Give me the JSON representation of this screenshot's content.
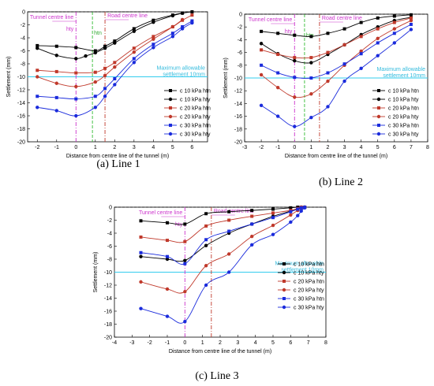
{
  "figure": {
    "captions": [
      "(a) Line 1",
      "(b) Line 2",
      "(c) Line 3"
    ],
    "xlabel": "Distance from centre line of the tunnel (m)",
    "ylabel": "Settlement (mm)",
    "annotations": {
      "tunnel": "Tunnel centre line",
      "road": "Road centre line",
      "hty": "hty",
      "htn": "htn",
      "max1": "Maximum allowable",
      "max2": "settlement  10mm"
    }
  },
  "colors": {
    "black": "#000000",
    "red": "#c0392b",
    "blue": "#1a2bdc",
    "magenta": "#cc33cc",
    "green": "#33bb33",
    "cyan": "#33ccee"
  },
  "chart_data": [
    {
      "type": "line",
      "id": "line1",
      "caption": "(a) Line 1",
      "xlabel": "Distance from centre line of the tunnel (m)",
      "ylabel": "Settlement (mm)",
      "xlim": [
        -2.5,
        6.8
      ],
      "ylim": [
        -20,
        0
      ],
      "xticks": [
        -2,
        -1,
        0,
        1,
        2,
        3,
        4,
        5,
        6
      ],
      "yticks": [
        0,
        -2,
        -4,
        -6,
        -8,
        -10,
        -12,
        -14,
        -16,
        -18,
        -20
      ],
      "tunnel_x": 0,
      "road_x": 1.5,
      "htn_x": 0.85,
      "limit_y": -10,
      "series": [
        {
          "name": "c 10 kPa htn",
          "color": "black",
          "marker": "square",
          "x": [
            -2,
            -1,
            0,
            1,
            1.5,
            2,
            3,
            4,
            5,
            5.5,
            6
          ],
          "y": [
            -5.2,
            -5.3,
            -5.5,
            -6.0,
            -5.3,
            -4.5,
            -2.6,
            -1.3,
            -0.5,
            -0.2,
            0
          ]
        },
        {
          "name": "c 10 kPa hty",
          "color": "black",
          "marker": "circle",
          "x": [
            -2,
            -1,
            0,
            0.5,
            1,
            1.5,
            2,
            3,
            4,
            5,
            5.5
          ],
          "y": [
            -5.6,
            -6.7,
            -7.2,
            -6.8,
            -6.3,
            -5.6,
            -4.8,
            -3.0,
            -1.6,
            -0.6,
            -0.2
          ]
        },
        {
          "name": "c 20 kPa htn",
          "color": "red",
          "marker": "square",
          "x": [
            -2,
            -1,
            0,
            1,
            1.5,
            2,
            3,
            4,
            5,
            5.5,
            6
          ],
          "y": [
            -9.0,
            -9.2,
            -9.4,
            -9.3,
            -8.7,
            -7.8,
            -5.6,
            -3.8,
            -2.3,
            -1.3,
            -0.5
          ]
        },
        {
          "name": "c 20 kPa hty",
          "color": "red",
          "marker": "circle",
          "x": [
            -2,
            -1,
            0,
            1,
            1.5,
            2,
            3,
            4,
            5,
            5.5
          ],
          "y": [
            -10.0,
            -11.0,
            -11.5,
            -10.8,
            -9.8,
            -8.5,
            -6.2,
            -4.2,
            -2.3,
            -1.2
          ]
        },
        {
          "name": "c 30 kPa htn",
          "color": "blue",
          "marker": "square",
          "x": [
            -2,
            -1,
            0,
            1,
            1.5,
            2,
            3,
            4,
            5,
            5.5,
            6
          ],
          "y": [
            -13.0,
            -13.2,
            -13.4,
            -13.0,
            -11.8,
            -10.3,
            -7.2,
            -5.0,
            -3.3,
            -2.3,
            -1.4
          ]
        },
        {
          "name": "c 30 kPa hty",
          "color": "blue",
          "marker": "circle",
          "x": [
            -2,
            -1,
            0,
            1,
            1.5,
            2,
            3,
            4,
            5,
            5.5,
            6
          ],
          "y": [
            -14.7,
            -15.2,
            -16.0,
            -14.7,
            -13.0,
            -11.2,
            -7.8,
            -5.5,
            -3.8,
            -2.6,
            -1.7
          ]
        }
      ]
    },
    {
      "type": "line",
      "id": "line2",
      "caption": "(b) Line 2",
      "xlabel": "Distance from centre line of the tunnel (m)",
      "ylabel": "Settlement (mm)",
      "xlim": [
        -3,
        8
      ],
      "ylim": [
        -20,
        0
      ],
      "xticks": [
        -3,
        -2,
        -1,
        0,
        1,
        2,
        3,
        4,
        5,
        6,
        7,
        8
      ],
      "yticks": [
        0,
        -2,
        -4,
        -6,
        -8,
        -10,
        -12,
        -14,
        -16,
        -18,
        -20
      ],
      "tunnel_x": 0,
      "road_x": 1.5,
      "htn_x": 0.6,
      "limit_y": -10,
      "series": [
        {
          "name": "c 10 kPa htn",
          "color": "black",
          "marker": "square",
          "x": [
            -2,
            -1,
            0,
            1,
            2,
            3,
            4,
            5,
            6,
            7
          ],
          "y": [
            -2.7,
            -3.0,
            -3.3,
            -3.5,
            -3.0,
            -2.3,
            -1.3,
            -0.6,
            -0.3,
            -0.1
          ]
        },
        {
          "name": "c 10 kPa hty",
          "color": "black",
          "marker": "circle",
          "x": [
            -2,
            -1,
            0,
            1,
            2,
            3,
            4,
            5,
            6,
            7
          ],
          "y": [
            -4.6,
            -6.2,
            -7.3,
            -7.6,
            -6.3,
            -4.8,
            -3.2,
            -2.0,
            -1.0,
            -0.5
          ]
        },
        {
          "name": "c 20 kPa htn",
          "color": "red",
          "marker": "square",
          "x": [
            -2,
            -1,
            0,
            1,
            2,
            3,
            4,
            5,
            6,
            7
          ],
          "y": [
            -5.6,
            -6.3,
            -6.8,
            -6.8,
            -6.0,
            -4.8,
            -3.5,
            -2.3,
            -1.3,
            -0.6
          ]
        },
        {
          "name": "c 20 kPa hty",
          "color": "red",
          "marker": "circle",
          "x": [
            -2,
            -1,
            0,
            1,
            2,
            3,
            4,
            5,
            6,
            7
          ],
          "y": [
            -9.5,
            -11.5,
            -13.0,
            -12.5,
            -10.5,
            -8.0,
            -5.8,
            -3.8,
            -2.3,
            -1.0
          ]
        },
        {
          "name": "c 30 kPa htn",
          "color": "blue",
          "marker": "square",
          "x": [
            -2,
            -1,
            0,
            1,
            2,
            3,
            4,
            5,
            6,
            7
          ],
          "y": [
            -8.0,
            -9.2,
            -9.9,
            -10.0,
            -9.2,
            -7.8,
            -6.2,
            -4.5,
            -3.0,
            -1.6
          ]
        },
        {
          "name": "c 30 kPa hty",
          "color": "blue",
          "marker": "circle",
          "x": [
            -2,
            -1,
            0,
            1,
            2,
            3,
            4,
            5,
            6,
            7
          ],
          "y": [
            -14.3,
            -16.0,
            -17.6,
            -16.2,
            -14.5,
            -10.5,
            -8.5,
            -6.5,
            -4.5,
            -2.4
          ]
        }
      ]
    },
    {
      "type": "line",
      "id": "line3",
      "caption": "(c) Line 3",
      "xlabel": "Distance from centre line of the tunnel (m)",
      "ylabel": "Settlement (mm)",
      "xlim": [
        -4,
        8
      ],
      "ylim": [
        -20,
        0
      ],
      "xticks": [
        -4,
        -3,
        -2,
        -1,
        0,
        1,
        2,
        3,
        4,
        5,
        6,
        7,
        8
      ],
      "yticks": [
        0,
        -2,
        -4,
        -6,
        -8,
        -10,
        -12,
        -14,
        -16,
        -18,
        -20
      ],
      "tunnel_x": 0,
      "road_x": 1.5,
      "limit_y": -10,
      "series": [
        {
          "name": "c 10 kPa htn",
          "color": "black",
          "marker": "square",
          "x": [
            -2.5,
            -1,
            0,
            1.2,
            2.5,
            3.8,
            5,
            6,
            6.4,
            6.6,
            6.8
          ],
          "y": [
            -2.1,
            -2.4,
            -2.6,
            -1.0,
            -0.7,
            -0.5,
            -0.3,
            -0.1,
            0,
            0,
            0
          ]
        },
        {
          "name": "c 10 kPa hty",
          "color": "black",
          "marker": "circle",
          "x": [
            -2.5,
            -1,
            0,
            1.2,
            2.5,
            3.8,
            5,
            6,
            6.4,
            6.6,
            6.8
          ],
          "y": [
            -7.6,
            -8.0,
            -8.2,
            -5.9,
            -4.0,
            -2.6,
            -1.4,
            -0.6,
            -0.2,
            0,
            0
          ]
        },
        {
          "name": "c 20 kPa htn",
          "color": "red",
          "marker": "square",
          "x": [
            -2.5,
            -1,
            0,
            1.2,
            2.5,
            3.8,
            5,
            6,
            6.4,
            6.6,
            6.8
          ],
          "y": [
            -4.6,
            -5.1,
            -5.3,
            -2.9,
            -2.0,
            -1.4,
            -0.9,
            -0.5,
            -0.2,
            0,
            0
          ]
        },
        {
          "name": "c 20 kPa hty",
          "color": "red",
          "marker": "circle",
          "x": [
            -2.5,
            -1,
            0,
            1.2,
            2.5,
            3.8,
            5,
            6,
            6.4,
            6.6,
            6.8
          ],
          "y": [
            -11.5,
            -12.6,
            -13.0,
            -9.0,
            -7.2,
            -4.5,
            -2.8,
            -1.2,
            -0.5,
            -0.2,
            0
          ]
        },
        {
          "name": "c 30 kPa htn",
          "color": "blue",
          "marker": "square",
          "x": [
            -2.5,
            -1,
            0,
            1.2,
            2.5,
            3.8,
            5,
            6,
            6.4,
            6.6,
            6.8
          ],
          "y": [
            -7.0,
            -7.6,
            -8.7,
            -5.0,
            -3.7,
            -2.6,
            -1.6,
            -0.7,
            -0.3,
            -0.1,
            0
          ]
        },
        {
          "name": "c 30 kPa hty",
          "color": "blue",
          "marker": "circle",
          "x": [
            -2.5,
            -1,
            0,
            1.2,
            2.5,
            3.8,
            5,
            6,
            6.4,
            6.6,
            6.8
          ],
          "y": [
            -15.6,
            -16.8,
            -17.6,
            -12.0,
            -10.0,
            -5.8,
            -4.2,
            -2.3,
            -1.3,
            -0.6,
            -0.1
          ]
        }
      ]
    }
  ]
}
